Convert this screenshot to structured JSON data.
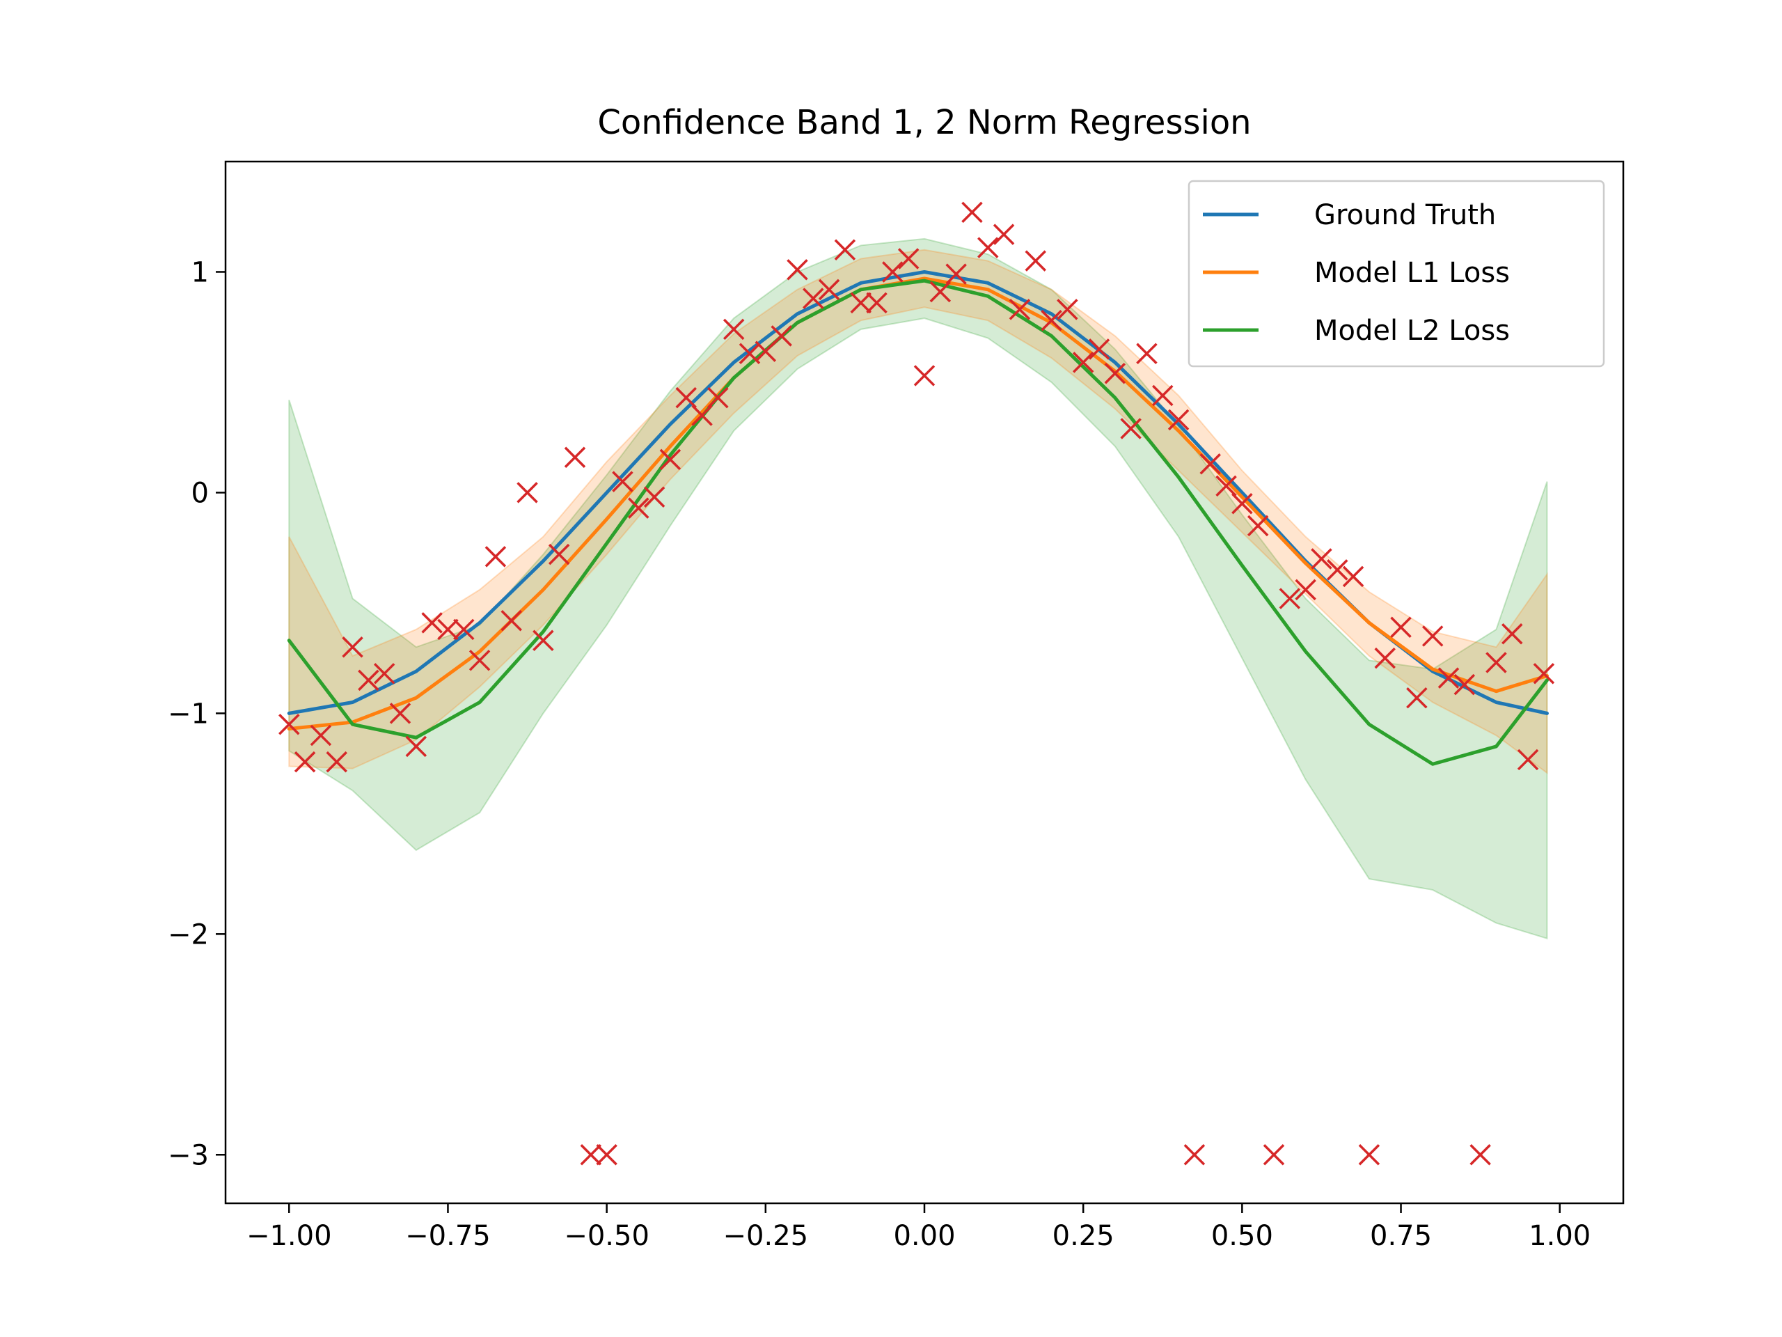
{
  "chart_data": {
    "type": "line",
    "title": "Confidence Band 1, 2 Norm Regression",
    "xlabel": "",
    "ylabel": "",
    "xlim": [
      -1.1,
      1.1
    ],
    "ylim": [
      -3.22,
      1.5
    ],
    "xticks": [
      -1.0,
      -0.75,
      -0.5,
      -0.25,
      0.0,
      0.25,
      0.5,
      0.75,
      1.0
    ],
    "xtick_labels": [
      "−1.00",
      "−0.75",
      "−0.50",
      "−0.25",
      "0.00",
      "0.25",
      "0.50",
      "0.75",
      "1.00"
    ],
    "yticks": [
      1,
      0,
      -1,
      -2,
      -3
    ],
    "ytick_labels": [
      "1",
      "0",
      "−1",
      "−2",
      "−3"
    ],
    "grid": false,
    "legend_position": "top-right",
    "colors": {
      "ground_truth": "#1f77b4",
      "model_l1": "#ff7f0e",
      "model_l2": "#2ca02c",
      "data_points": "#d62728"
    },
    "x": [
      -1.0,
      -0.9,
      -0.8,
      -0.7,
      -0.6,
      -0.5,
      -0.4,
      -0.3,
      -0.2,
      -0.1,
      0.0,
      0.1,
      0.2,
      0.3,
      0.4,
      0.5,
      0.6,
      0.7,
      0.8,
      0.9,
      0.98
    ],
    "series": [
      {
        "name": "Ground Truth",
        "color": "#1f77b4",
        "values": [
          -1.0,
          -0.95,
          -0.81,
          -0.59,
          -0.31,
          0.0,
          0.31,
          0.59,
          0.81,
          0.95,
          1.0,
          0.95,
          0.81,
          0.59,
          0.31,
          0.0,
          -0.31,
          -0.59,
          -0.81,
          -0.95,
          -1.0
        ]
      },
      {
        "name": "Model L1 Loss",
        "color": "#ff7f0e",
        "values": [
          -1.07,
          -1.04,
          -0.93,
          -0.72,
          -0.44,
          -0.12,
          0.21,
          0.52,
          0.77,
          0.92,
          0.97,
          0.92,
          0.77,
          0.55,
          0.28,
          -0.02,
          -0.32,
          -0.59,
          -0.8,
          -0.9,
          -0.83
        ]
      },
      {
        "name": "Model L2 Loss",
        "color": "#2ca02c",
        "values": [
          -0.67,
          -1.05,
          -1.11,
          -0.95,
          -0.63,
          -0.23,
          0.17,
          0.52,
          0.77,
          0.92,
          0.96,
          0.89,
          0.71,
          0.43,
          0.07,
          -0.33,
          -0.72,
          -1.05,
          -1.23,
          -1.15,
          -0.85
        ]
      }
    ],
    "bands": [
      {
        "series": "Model L2 Loss",
        "color": "#2ca02c",
        "upper": [
          0.42,
          -0.48,
          -0.7,
          -0.6,
          -0.28,
          0.08,
          0.46,
          0.79,
          1.0,
          1.12,
          1.15,
          1.08,
          0.92,
          0.65,
          0.3,
          -0.1,
          -0.48,
          -0.76,
          -0.8,
          -0.62,
          0.05
        ],
        "lower": [
          -1.17,
          -1.35,
          -1.62,
          -1.45,
          -1.0,
          -0.6,
          -0.15,
          0.28,
          0.56,
          0.74,
          0.79,
          0.7,
          0.5,
          0.21,
          -0.2,
          -0.75,
          -1.3,
          -1.75,
          -1.8,
          -1.95,
          -2.02
        ]
      },
      {
        "series": "Model L1 Loss",
        "color": "#ff7f0e",
        "upper": [
          -0.2,
          -0.74,
          -0.62,
          -0.44,
          -0.2,
          0.14,
          0.44,
          0.72,
          0.92,
          1.06,
          1.1,
          1.05,
          0.92,
          0.71,
          0.44,
          0.1,
          -0.2,
          -0.45,
          -0.63,
          -0.7,
          -0.37
        ],
        "lower": [
          -1.24,
          -1.25,
          -1.12,
          -0.88,
          -0.6,
          -0.28,
          0.06,
          0.36,
          0.62,
          0.78,
          0.84,
          0.78,
          0.61,
          0.38,
          0.1,
          -0.18,
          -0.46,
          -0.74,
          -0.95,
          -1.1,
          -1.27
        ]
      }
    ],
    "scatter": {
      "color": "#d62728",
      "marker": "x",
      "points": [
        [
          -1.0,
          -1.05
        ],
        [
          -0.975,
          -1.22
        ],
        [
          -0.95,
          -1.1
        ],
        [
          -0.925,
          -1.22
        ],
        [
          -0.9,
          -0.7
        ],
        [
          -0.875,
          -0.85
        ],
        [
          -0.85,
          -0.82
        ],
        [
          -0.825,
          -1.0
        ],
        [
          -0.8,
          -1.15
        ],
        [
          -0.775,
          -0.59
        ],
        [
          -0.75,
          -0.62
        ],
        [
          -0.725,
          -0.62
        ],
        [
          -0.7,
          -0.76
        ],
        [
          -0.675,
          -0.29
        ],
        [
          -0.65,
          -0.58
        ],
        [
          -0.625,
          0.0
        ],
        [
          -0.6,
          -0.67
        ],
        [
          -0.575,
          -0.28
        ],
        [
          -0.55,
          0.16
        ],
        [
          -0.525,
          -3.0
        ],
        [
          -0.5,
          -3.0
        ],
        [
          -0.475,
          0.05
        ],
        [
          -0.45,
          -0.07
        ],
        [
          -0.425,
          -0.02
        ],
        [
          -0.4,
          0.15
        ],
        [
          -0.375,
          0.43
        ],
        [
          -0.35,
          0.35
        ],
        [
          -0.325,
          0.43
        ],
        [
          -0.3,
          0.74
        ],
        [
          -0.275,
          0.63
        ],
        [
          -0.25,
          0.64
        ],
        [
          -0.225,
          0.71
        ],
        [
          -0.2,
          1.01
        ],
        [
          -0.175,
          0.88
        ],
        [
          -0.15,
          0.92
        ],
        [
          -0.125,
          1.1
        ],
        [
          -0.1,
          0.86
        ],
        [
          -0.075,
          0.86
        ],
        [
          -0.05,
          1.0
        ],
        [
          -0.025,
          1.06
        ],
        [
          0.0,
          0.53
        ],
        [
          0.025,
          0.91
        ],
        [
          0.05,
          0.99
        ],
        [
          0.075,
          1.27
        ],
        [
          0.1,
          1.11
        ],
        [
          0.125,
          1.17
        ],
        [
          0.15,
          0.83
        ],
        [
          0.175,
          1.05
        ],
        [
          0.2,
          0.78
        ],
        [
          0.225,
          0.83
        ],
        [
          0.25,
          0.59
        ],
        [
          0.275,
          0.65
        ],
        [
          0.3,
          0.54
        ],
        [
          0.325,
          0.29
        ],
        [
          0.35,
          0.63
        ],
        [
          0.375,
          0.44
        ],
        [
          0.4,
          0.33
        ],
        [
          0.425,
          -3.0
        ],
        [
          0.45,
          0.13
        ],
        [
          0.475,
          0.03
        ],
        [
          0.5,
          -0.05
        ],
        [
          0.525,
          -0.15
        ],
        [
          0.55,
          -3.0
        ],
        [
          0.575,
          -0.48
        ],
        [
          0.6,
          -0.44
        ],
        [
          0.625,
          -0.3
        ],
        [
          0.65,
          -0.35
        ],
        [
          0.675,
          -0.38
        ],
        [
          0.7,
          -3.0
        ],
        [
          0.725,
          -0.75
        ],
        [
          0.75,
          -0.61
        ],
        [
          0.775,
          -0.93
        ],
        [
          0.8,
          -0.65
        ],
        [
          0.825,
          -0.84
        ],
        [
          0.85,
          -0.87
        ],
        [
          0.875,
          -3.0
        ],
        [
          0.9,
          -0.77
        ],
        [
          0.925,
          -0.64
        ],
        [
          0.95,
          -1.21
        ],
        [
          0.975,
          -0.82
        ]
      ]
    }
  }
}
